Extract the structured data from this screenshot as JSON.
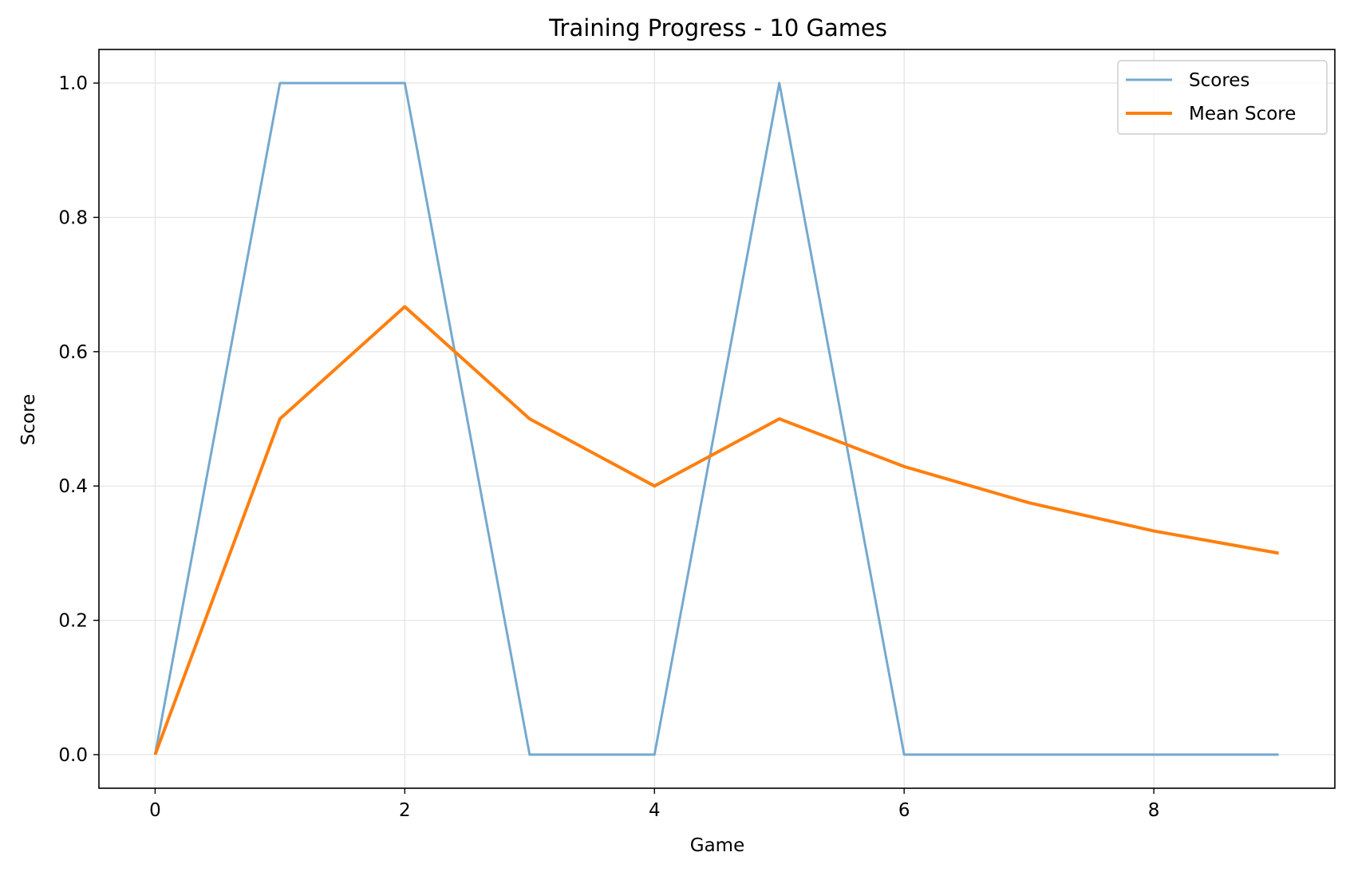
{
  "chart_data": {
    "type": "line",
    "title": "Training Progress - 10 Games",
    "xlabel": "Game",
    "ylabel": "Score",
    "x": [
      0,
      1,
      2,
      3,
      4,
      5,
      6,
      7,
      8,
      9
    ],
    "series": [
      {
        "name": "Scores",
        "color": "#74a9cf",
        "values": [
          0,
          1,
          1,
          0,
          0,
          1,
          0,
          0,
          0,
          0
        ]
      },
      {
        "name": "Mean Score",
        "color": "#ff7f0e",
        "values": [
          0,
          0.5,
          0.667,
          0.5,
          0.4,
          0.5,
          0.429,
          0.375,
          0.333,
          0.3
        ]
      }
    ],
    "xlim": [
      -0.45,
      9.45
    ],
    "ylim": [
      -0.05,
      1.05
    ],
    "xticks": [
      0,
      2,
      4,
      6,
      8
    ],
    "xtick_labels": [
      "0",
      "2",
      "4",
      "6",
      "8"
    ],
    "yticks": [
      0,
      0.2,
      0.4,
      0.6,
      0.8,
      1.0
    ],
    "ytick_labels": [
      "0.0",
      "0.2",
      "0.4",
      "0.6",
      "0.8",
      "1.0"
    ],
    "grid": true,
    "legend_position": "top-right"
  }
}
